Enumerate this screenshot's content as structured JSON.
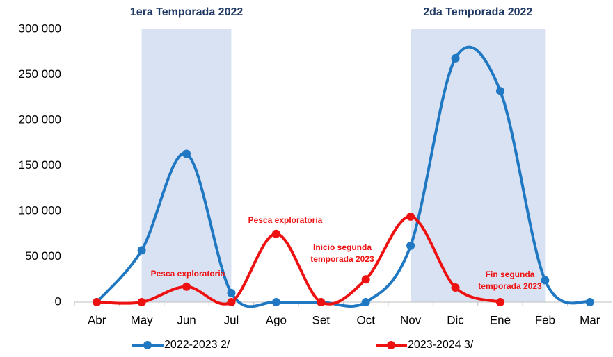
{
  "chart_data": {
    "type": "line",
    "categories": [
      "Abr",
      "May",
      "Jun",
      "Jul",
      "Ago",
      "Set",
      "Oct",
      "Nov",
      "Dic",
      "Ene",
      "Feb",
      "Mar"
    ],
    "series": [
      {
        "name": "2022-2023 2/",
        "color": "#1f78c1",
        "values": [
          0,
          57000,
          163000,
          10000,
          0,
          0,
          0,
          62000,
          268000,
          232000,
          24000,
          0
        ]
      },
      {
        "name": "2023-2024 3/",
        "color": "#ee1111",
        "values": [
          0,
          0,
          17000,
          0,
          75000,
          0,
          25000,
          94000,
          16000,
          0,
          null,
          null
        ]
      }
    ],
    "ylim": [
      0,
      300000
    ],
    "yticks": [
      {
        "value": 0,
        "label": "0"
      },
      {
        "value": 50000,
        "label": "50 000"
      },
      {
        "value": 100000,
        "label": "100 000"
      },
      {
        "value": 150000,
        "label": "150 000"
      },
      {
        "value": 200000,
        "label": "200 000"
      },
      {
        "value": 250000,
        "label": "250 000"
      },
      {
        "value": 300000,
        "label": "300 000"
      }
    ],
    "bands": [
      {
        "label": "1era Temporada 2022",
        "from": "May",
        "to": "Jul",
        "color": "#d9e2f3"
      },
      {
        "label": "2da Temporada 2022",
        "from": "Nov",
        "to": "Feb",
        "color": "#d9e2f3"
      }
    ],
    "annotations": [
      {
        "text": [
          "Pesca exploratoria"
        ]
      },
      {
        "text": [
          "Pesca exploratoria"
        ]
      },
      {
        "text": [
          "Inicio segunda",
          "temporada 2023"
        ]
      },
      {
        "text": [
          "Fin segunda",
          "temporada 2023"
        ]
      }
    ],
    "legend": "bottom"
  }
}
